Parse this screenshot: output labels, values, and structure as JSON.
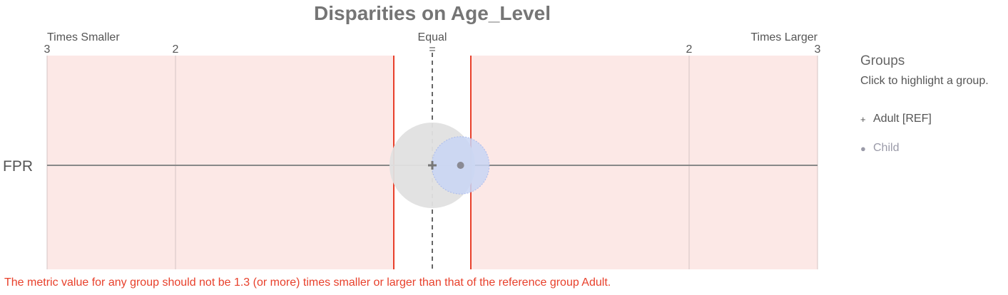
{
  "title": "Disparities on Age_Level",
  "labels": {
    "smaller": "Times Smaller",
    "equal": "Equal",
    "larger": "Times Larger"
  },
  "legend": {
    "title": "Groups",
    "subtitle": "Click to highlight a group.",
    "items": [
      {
        "label": "Adult [REF]",
        "symbol": "+",
        "color": "#666666",
        "icon": "plus-icon"
      },
      {
        "label": "Child",
        "symbol": "●",
        "color": "#9a9aa8",
        "icon": "circle-icon"
      }
    ]
  },
  "footnote": "The metric value for any group should not be 1.3 (or more) times smaller or larger than that of the reference group Adult.",
  "colors": {
    "fair_band": "#fce8e6",
    "threshold": "#e8402b",
    "ref_bubble": "#e0e0e0",
    "child_bubble": "#c9d6f5",
    "axis_line": "#888888"
  },
  "chart_data": {
    "type": "scatter",
    "metric": "FPR",
    "x_scale": "times-disparity",
    "xlim": [
      -3,
      3
    ],
    "x_ticks": [
      {
        "value": -3,
        "label": "3"
      },
      {
        "value": -2,
        "label": "2"
      },
      {
        "value": 0,
        "label": "="
      },
      {
        "value": 2,
        "label": "2"
      },
      {
        "value": 3,
        "label": "3"
      }
    ],
    "threshold": 1.3,
    "reference_group": "Adult",
    "points": [
      {
        "group": "Adult [REF]",
        "disparity": 1.0,
        "relative_size": 1.0
      },
      {
        "group": "Child",
        "disparity": 1.22,
        "relative_size": 0.45
      }
    ]
  }
}
